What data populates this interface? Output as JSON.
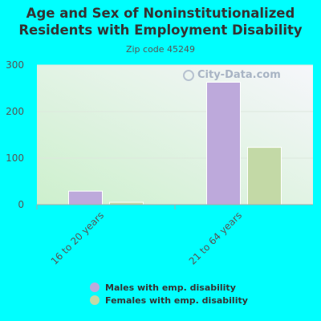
{
  "colors": {
    "background": "#00FFFF",
    "males": "#bda9db",
    "females": "#c3d9a6"
  },
  "chart_data": {
    "type": "bar",
    "title": "Age and Sex of Noninstitutionalized Residents with Employment Disability",
    "subtitle": "Zip code 45249",
    "categories": [
      "16 to 20 years",
      "21 to 64 years"
    ],
    "series": [
      {
        "name": "Males with emp. disability",
        "values": [
          29,
          263
        ],
        "color": "#bda9db"
      },
      {
        "name": "Females with emp. disability",
        "values": [
          5,
          123
        ],
        "color": "#c3d9a6"
      }
    ],
    "y_ticks": [
      0,
      100,
      200,
      300
    ],
    "ylim": [
      0,
      300
    ],
    "grid": true,
    "legend_position": "bottom"
  },
  "watermark": "City-Data.com"
}
